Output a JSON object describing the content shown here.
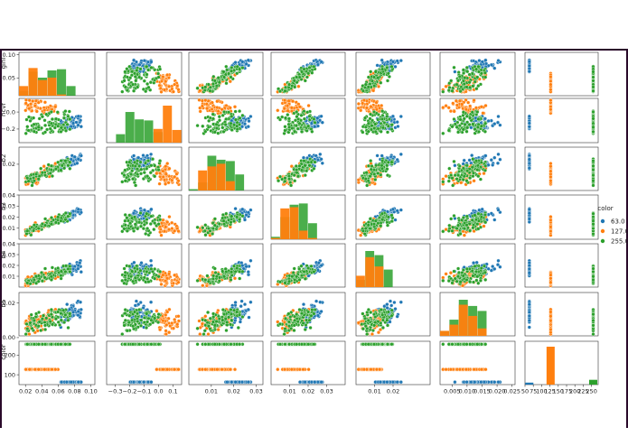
{
  "chart_data": {
    "type": "scatter",
    "variables": [
      "gini",
      "hcvf",
      "b2",
      "b3",
      "b4",
      "b5",
      "color"
    ],
    "ylabels": [
      "gini",
      "hcvf",
      "b2",
      "b3",
      "b4",
      "b5",
      "color"
    ],
    "axis_ticks": {
      "gini": [
        "0.02",
        "0.04",
        "0.06",
        "0.08",
        "0.10"
      ],
      "hcvf": [
        "−0.3",
        "−0.2",
        "−0.1",
        "0.0",
        "0.1"
      ],
      "b2": [
        "0.01",
        "0.02",
        "0.03"
      ],
      "b3": [
        "0.01",
        "0.02",
        "0.03"
      ],
      "b4": [
        "0.01",
        "0.02"
      ],
      "b5": [
        "0.005",
        "0.010",
        "0.015",
        "0.020",
        "0.025"
      ],
      "color": [
        "50",
        "75",
        "100",
        "125",
        "150",
        "175",
        "200",
        "225",
        "250"
      ]
    },
    "row_ticks": {
      "gini": [
        "0.10",
        "0.05"
      ],
      "hcvf": [
        "0.0",
        "−0.2"
      ],
      "b2": [
        "0.02"
      ],
      "b3": [
        "0.04",
        "0.03",
        "0.02",
        "0.01"
      ],
      "b4": [
        "0.04",
        "0.03",
        "0.02",
        "0.01"
      ],
      "b5": [
        "0.02",
        "0.00"
      ],
      "color": [
        "200",
        "100"
      ]
    },
    "ranges": {
      "gini": [
        0.012,
        0.105
      ],
      "hcvf": [
        -0.36,
        0.16
      ],
      "b2": [
        0.0,
        0.033
      ],
      "b3": [
        0.0,
        0.04
      ],
      "b4": [
        0.0,
        0.04
      ],
      "b5": [
        0.001,
        0.026
      ],
      "color": [
        50,
        270
      ]
    },
    "series": [
      {
        "name": "63.0",
        "color": "#1f77b4"
      },
      {
        "name": "127.0",
        "color": "#ff7f0e"
      },
      {
        "name": "255.0",
        "color": "#2ca02c"
      }
    ],
    "legend": {
      "title": "color",
      "placement": "right"
    },
    "color_counts": {
      "63.0": 5,
      "127.0": 95,
      "255.0": 12
    },
    "grid": false
  }
}
